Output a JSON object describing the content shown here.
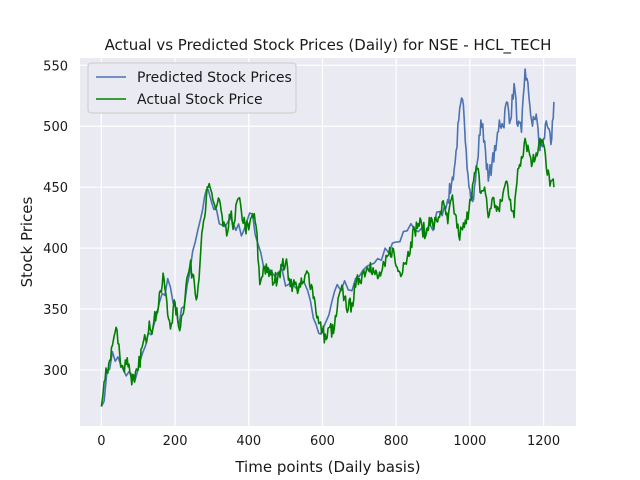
{
  "chart_data": {
    "type": "line",
    "title": "Actual vs Predicted Stock Prices (Daily) for NSE - HCL_TECH",
    "xlabel": "Time points (Daily basis)",
    "ylabel": "Stock Prices",
    "xlim": [
      -58,
      1288
    ],
    "ylim": [
      254,
      556
    ],
    "xticks": [
      0,
      200,
      400,
      600,
      800,
      1000,
      1200
    ],
    "yticks": [
      300,
      350,
      400,
      450,
      500,
      550
    ],
    "grid": true,
    "legend": "top-left",
    "colors": {
      "background": "#eaeaf2",
      "grid": "#ffffff"
    },
    "series": [
      {
        "name": "Predicted Stock Prices",
        "color": "#4c72b0",
        "x": [
          0,
          30,
          60,
          90,
          120,
          150,
          180,
          210,
          240,
          270,
          290,
          320,
          350,
          380,
          410,
          440,
          480,
          520,
          560,
          590,
          610,
          640,
          680,
          720,
          760,
          800,
          840,
          880,
          920,
          940,
          950,
          960,
          970,
          980,
          990,
          1000,
          1010,
          1020,
          1030,
          1040,
          1050,
          1060,
          1070,
          1080,
          1090,
          1100,
          1110,
          1120,
          1130,
          1140,
          1150,
          1160,
          1170,
          1180,
          1190,
          1200,
          1210,
          1220,
          1228
        ],
        "y": [
          270,
          315,
          300,
          290,
          320,
          345,
          375,
          335,
          380,
          425,
          448,
          420,
          425,
          410,
          428,
          385,
          380,
          370,
          365,
          330,
          340,
          370,
          365,
          385,
          390,
          405,
          420,
          410,
          430,
          440,
          452,
          470,
          505,
          522,
          480,
          448,
          440,
          470,
          505,
          488,
          455,
          470,
          480,
          505,
          500,
          520,
          505,
          535,
          500,
          495,
          547,
          525,
          500,
          510,
          480,
          490,
          500,
          485,
          520
        ]
      },
      {
        "name": "Actual Stock Price",
        "color": "#008000",
        "x": [
          0,
          10,
          20,
          30,
          40,
          50,
          60,
          70,
          80,
          90,
          100,
          110,
          120,
          130,
          140,
          150,
          160,
          170,
          180,
          190,
          200,
          210,
          220,
          230,
          240,
          250,
          260,
          270,
          280,
          290,
          300,
          310,
          320,
          330,
          340,
          350,
          360,
          370,
          380,
          390,
          400,
          410,
          420,
          430,
          440,
          450,
          460,
          470,
          480,
          490,
          500,
          510,
          520,
          530,
          540,
          550,
          560,
          570,
          580,
          590,
          600,
          610,
          620,
          630,
          640,
          650,
          660,
          670,
          680,
          690,
          700,
          710,
          720,
          730,
          740,
          750,
          760,
          770,
          780,
          790,
          800,
          810,
          820,
          830,
          840,
          850,
          860,
          870,
          880,
          890,
          900,
          910,
          920,
          930,
          940,
          950,
          960,
          970,
          980,
          990,
          1000,
          1010,
          1020,
          1030,
          1040,
          1050,
          1060,
          1070,
          1080,
          1090,
          1100,
          1110,
          1120,
          1130,
          1140,
          1150,
          1160,
          1170,
          1180,
          1190,
          1200,
          1210,
          1220,
          1228
        ],
        "y": [
          270,
          292,
          305,
          320,
          335,
          312,
          300,
          310,
          295,
          290,
          300,
          318,
          325,
          340,
          335,
          348,
          365,
          375,
          345,
          338,
          355,
          335,
          345,
          370,
          385,
          378,
          360,
          400,
          425,
          450,
          445,
          432,
          440,
          418,
          410,
          425,
          420,
          440,
          430,
          418,
          415,
          428,
          418,
          370,
          385,
          380,
          378,
          372,
          380,
          385,
          388,
          375,
          370,
          368,
          368,
          372,
          380,
          370,
          355,
          338,
          332,
          325,
          335,
          330,
          350,
          365,
          360,
          350,
          355,
          368,
          375,
          380,
          383,
          388,
          380,
          375,
          380,
          385,
          395,
          400,
          385,
          380,
          388,
          392,
          405,
          415,
          420,
          418,
          410,
          425,
          418,
          422,
          430,
          435,
          420,
          440,
          428,
          410,
          415,
          420,
          440,
          455,
          465,
          445,
          450,
          425,
          440,
          435,
          430,
          445,
          455,
          440,
          425,
          465,
          475,
          490,
          480,
          470,
          478,
          490,
          485,
          460,
          455,
          450
        ]
      }
    ]
  }
}
